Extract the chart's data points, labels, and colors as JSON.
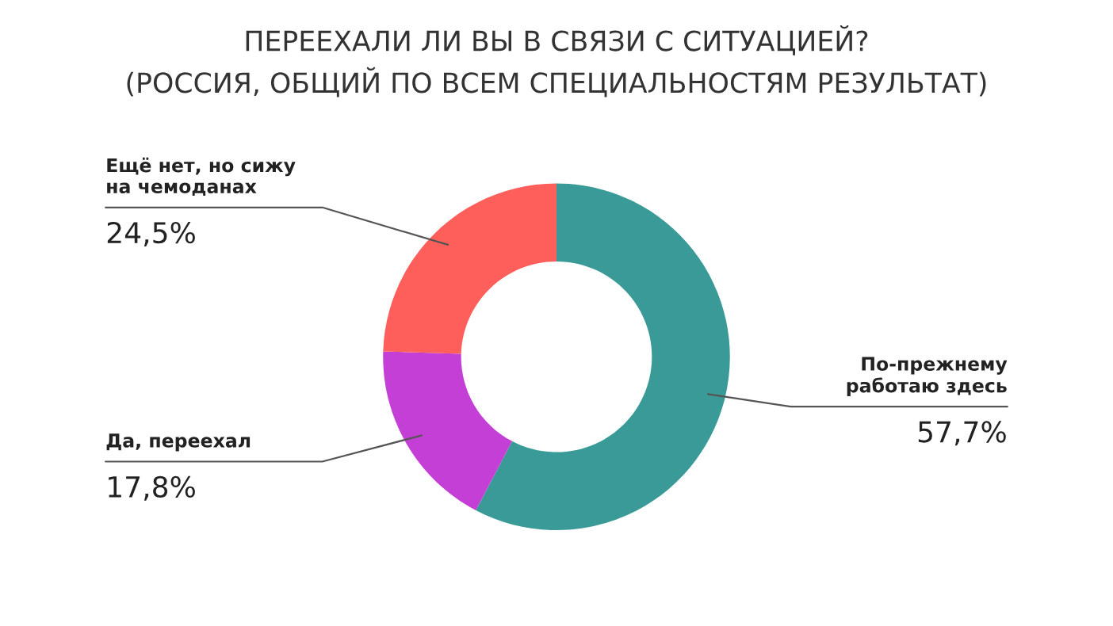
{
  "chart_data": {
    "type": "donut",
    "title": "ПЕРЕЕХАЛИ ЛИ ВЫ В СВЯЗИ С СИТУАЦИЕЙ?\n(РОССИЯ, ОБЩИЙ ПО ВСЕМ СПЕЦИАЛЬНОСТЯМ РЕЗУЛЬТАТ)",
    "categories": [
      "По-прежнему\nработаю здесь",
      "Да, переехал",
      "Ещё нет, но сижу\nна чемоданах"
    ],
    "values": [
      57.7,
      17.8,
      24.5
    ],
    "value_labels": [
      "57,7%",
      "17,8%",
      "24,5%"
    ],
    "colors": [
      "#3a9a98",
      "#c43fd6",
      "#ff5f5a"
    ],
    "legend": false
  }
}
